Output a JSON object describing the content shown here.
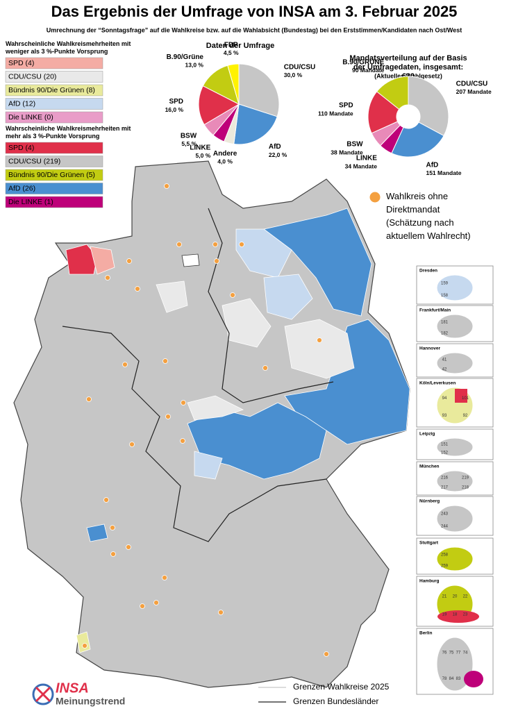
{
  "header": {
    "title": "Das Ergebnis der Umfrage von INSA am 3. Februar 2025",
    "subtitle": "Umrechnung der “Sonntagsfrage” auf die Wahlkreise bzw. auf die Wahlabsicht (Bundestag) bei den Erststimmen/Kandidaten nach Ost/West"
  },
  "legend_weak": {
    "title": "Wahrscheinliche Wahlkreismehrheiten mit weniger als 3 %-Punkte Vorsprung",
    "items": [
      {
        "label": "SPD (4)",
        "color": "#f4aca4"
      },
      {
        "label": "CDU/CSU (20)",
        "color": "#e9e9e9"
      },
      {
        "label": "Bündnis 90/Die Grünen (8)",
        "color": "#e9ea9c"
      },
      {
        "label": "AfD (12)",
        "color": "#c6d9ef"
      },
      {
        "label": "Die LINKE (0)",
        "color": "#e99cc8"
      }
    ]
  },
  "legend_strong": {
    "title": "Wahrscheinliche Wahlkreismehrheiten mit mehr als 3 %-Punkte Vorsprung",
    "items": [
      {
        "label": "SPD (4)",
        "color": "#e0304a"
      },
      {
        "label": "CDU/CSU (219)",
        "color": "#c6c6c6"
      },
      {
        "label": "Bündnis 90/Die Grünen (5)",
        "color": "#c2cc12"
      },
      {
        "label": "AfD (26)",
        "color": "#4a8fd0"
      },
      {
        "label": "Die LINKE (1)",
        "color": "#be0079"
      }
    ]
  },
  "survey": {
    "title": "Daten der Umfrage",
    "slices": [
      {
        "name": "CDU/CSU",
        "value": 30.0,
        "value_label": "30,0 %",
        "color": "#c6c6c6"
      },
      {
        "name": "AfD",
        "value": 22.0,
        "value_label": "22,0 %",
        "color": "#4a8fd0"
      },
      {
        "name": "Andere",
        "value": 4.0,
        "value_label": "4,0 %",
        "color": "#ece9dc"
      },
      {
        "name": "LINKE",
        "value": 5.0,
        "value_label": "5,0 %",
        "color": "#be0079"
      },
      {
        "name": "BSW",
        "value": 5.5,
        "value_label": "5,5 %",
        "color": "#e88ab8"
      },
      {
        "name": "SPD",
        "value": 16.0,
        "value_label": "16,0 %",
        "color": "#e0304a"
      },
      {
        "name": "B.90/Grüne",
        "value": 13.0,
        "value_label": "13,0 %",
        "color": "#c2cc12"
      },
      {
        "name": "FDP",
        "value": 4.5,
        "value_label": "4,5 %",
        "color": "#fff200"
      }
    ]
  },
  "seats": {
    "title": "Mandatsverteilung auf der Basis der Umfragedaten, insgesamt: 630",
    "note": "(Aktuelles Wahlgesetz)",
    "slices": [
      {
        "name": "CDU/CSU",
        "value": 207,
        "value_label": "207 Mandate",
        "color": "#c6c6c6"
      },
      {
        "name": "AfD",
        "value": 151,
        "value_label": "151 Mandate",
        "color": "#4a8fd0"
      },
      {
        "name": "LINKE",
        "value": 34,
        "value_label": "34 Mandate",
        "color": "#be0079"
      },
      {
        "name": "BSW",
        "value": 38,
        "value_label": "38 Mandate",
        "color": "#e88ab8"
      },
      {
        "name": "SPD",
        "value": 110,
        "value_label": "110 Mandate",
        "color": "#e0304a"
      },
      {
        "name": "B.90/GRÜNE",
        "value": 90,
        "value_label": "90 Mandate",
        "color": "#c2cc12"
      }
    ]
  },
  "marker_legend": "Wahlkreis ohne Direktmandat (Schätzung nach aktuellem Wahlrecht)",
  "insets": [
    {
      "title": "Dresden",
      "labels": [
        "159",
        "158"
      ]
    },
    {
      "title": "Frankfurt/Main",
      "labels": [
        "181",
        "182"
      ]
    },
    {
      "title": "Hannover",
      "labels": [
        "41",
        "42"
      ]
    },
    {
      "title": "Köln/Leverkusen",
      "labels": [
        "94",
        "101",
        "93",
        "92"
      ]
    },
    {
      "title": "Leipzig",
      "labels": [
        "151",
        "152"
      ]
    },
    {
      "title": "München",
      "labels": [
        "216",
        "219",
        "217",
        "218"
      ]
    },
    {
      "title": "Nürnberg",
      "labels": [
        "243",
        "244"
      ]
    },
    {
      "title": "Stuttgart",
      "labels": [
        "258",
        "259"
      ]
    },
    {
      "title": "Hamburg",
      "labels": [
        "21",
        "20",
        "22",
        "19",
        "18",
        "23"
      ]
    },
    {
      "title": "Berlin",
      "labels": [
        "76",
        "75",
        "77",
        "74",
        "78",
        "84",
        "83"
      ]
    }
  ],
  "footer": {
    "wahlkreise": "Grenzen Wahlkreise 2025",
    "laender": "Grenzen Bundesländer",
    "logo_top": "INSA",
    "logo_bottom": "Meinungstrend"
  }
}
